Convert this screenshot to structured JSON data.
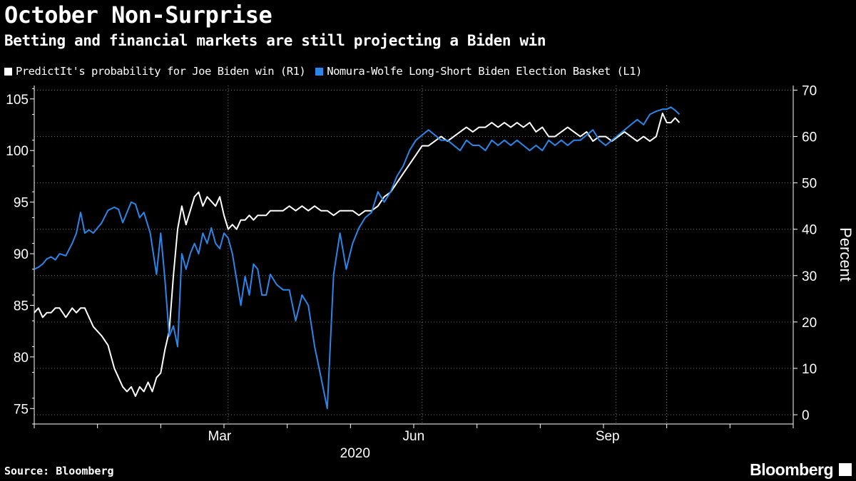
{
  "header": {
    "title": "October Non-Surprise",
    "subtitle": "Betting and financial markets are still projecting a Biden win"
  },
  "legend": [
    {
      "label": "PredictIt's probability for Joe Biden win (R1)",
      "color": "#ffffff"
    },
    {
      "label": "Nomura-Wolfe Long-Short Biden Election Basket  (L1)",
      "color": "#2b86e8"
    }
  ],
  "footer": {
    "source": "Source: Bloomberg",
    "brand": "Bloomberg"
  },
  "chart_data": {
    "type": "line",
    "title": "October Non-Surprise",
    "subtitle": "Betting and financial markets are still projecting a Biden win",
    "xlabel": "2020",
    "ylabel_right": "Percent",
    "x_ticks": [
      "Mar",
      "Jun",
      "Sep"
    ],
    "left_axis": {
      "ticks": [
        75,
        80,
        85,
        90,
        95,
        100,
        105
      ],
      "range": [
        73.5,
        106.3
      ]
    },
    "right_axis": {
      "ticks": [
        0,
        10,
        20,
        30,
        40,
        50,
        60,
        70
      ],
      "range": [
        -2,
        71
      ]
    },
    "x_range": [
      0,
      360
    ],
    "x_tick_positions": [
      92,
      184,
      276
    ],
    "grid": true,
    "series": [
      {
        "name": "PredictIt's probability for Joe Biden win (R1)",
        "axis": "right",
        "color": "#ffffff",
        "x": [
          0,
          2,
          4,
          6,
          8,
          10,
          12,
          15,
          18,
          20,
          22,
          24,
          26,
          28,
          30,
          32,
          35,
          38,
          40,
          42,
          44,
          46,
          48,
          50,
          52,
          54,
          56,
          58,
          60,
          62,
          64,
          66,
          68,
          70,
          72,
          74,
          76,
          78,
          80,
          82,
          84,
          86,
          88,
          90,
          92,
          94,
          96,
          98,
          100,
          102,
          104,
          106,
          108,
          110,
          112,
          115,
          118,
          121,
          124,
          127,
          130,
          133,
          136,
          139,
          142,
          145,
          148,
          151,
          154,
          157,
          160,
          163,
          166,
          169,
          172,
          175,
          178,
          181,
          184,
          187,
          190,
          193,
          196,
          199,
          202,
          205,
          208,
          211,
          214,
          217,
          220,
          223,
          226,
          229,
          232,
          235,
          238,
          241,
          244,
          247,
          250,
          253,
          256,
          259,
          262,
          265,
          268,
          271,
          274,
          277,
          280,
          283,
          286,
          289,
          292,
          295,
          298,
          300,
          302,
          304,
          306
        ],
        "values": [
          22,
          23,
          21,
          22,
          22,
          23,
          23,
          21,
          23,
          22,
          23,
          23,
          21,
          19,
          18,
          17,
          15,
          10,
          8,
          6,
          5,
          6,
          4,
          6,
          5,
          7,
          5,
          8,
          9,
          14,
          18,
          30,
          40,
          45,
          41,
          44,
          47,
          48,
          45,
          47,
          46,
          45,
          47,
          43,
          40,
          41,
          40,
          42,
          42,
          43,
          42,
          43,
          43,
          43,
          44,
          44,
          44,
          45,
          44,
          45,
          44,
          45,
          44,
          44,
          43,
          44,
          44,
          44,
          43,
          44,
          44,
          45,
          47,
          48,
          50,
          52,
          54,
          56,
          58,
          58,
          59,
          60,
          59,
          60,
          61,
          62,
          61,
          62,
          62,
          63,
          62,
          63,
          62,
          63,
          62,
          63,
          61,
          62,
          60,
          60,
          61,
          62,
          61,
          60,
          61,
          59,
          60,
          60,
          59,
          60,
          61,
          60,
          59,
          60,
          59,
          60,
          65,
          63,
          63,
          64,
          63
        ]
      },
      {
        "name": "Nomura-Wolfe Long-Short Biden Election Basket  (L1)",
        "axis": "left",
        "color": "#2b86e8",
        "x": [
          0,
          2,
          4,
          6,
          8,
          10,
          12,
          15,
          18,
          20,
          22,
          24,
          26,
          28,
          30,
          32,
          35,
          38,
          40,
          42,
          44,
          46,
          48,
          50,
          52,
          55,
          58,
          60,
          62,
          64,
          66,
          68,
          70,
          72,
          74,
          76,
          78,
          80,
          82,
          84,
          86,
          88,
          90,
          92,
          94,
          96,
          98,
          100,
          102,
          104,
          106,
          108,
          110,
          112,
          115,
          118,
          121,
          124,
          127,
          130,
          133,
          136,
          139,
          142,
          145,
          148,
          151,
          154,
          157,
          160,
          163,
          166,
          169,
          172,
          175,
          178,
          181,
          184,
          187,
          190,
          193,
          196,
          199,
          202,
          205,
          208,
          211,
          214,
          217,
          220,
          223,
          226,
          229,
          232,
          235,
          238,
          241,
          244,
          247,
          250,
          253,
          256,
          259,
          262,
          265,
          268,
          271,
          274,
          277,
          280,
          283,
          286,
          289,
          292,
          295,
          298,
          300,
          302,
          304,
          306
        ],
        "values": [
          88.5,
          88.7,
          89,
          89.5,
          89.7,
          89.4,
          90,
          89.8,
          91,
          92,
          94,
          92,
          92.3,
          92,
          92.5,
          93,
          94.2,
          94.5,
          94.3,
          93,
          94,
          95,
          94.8,
          93.5,
          94,
          92,
          88,
          92,
          87.5,
          82,
          83,
          81,
          90,
          88.5,
          90,
          91,
          90,
          92,
          91,
          92.5,
          91,
          90.5,
          92,
          91.5,
          90,
          87.5,
          85,
          87.8,
          86,
          89,
          88.5,
          86,
          86,
          88,
          87,
          86.5,
          86.5,
          83.5,
          86,
          85,
          81,
          78,
          75,
          88,
          92,
          88.5,
          91,
          92.5,
          93.5,
          94,
          96,
          95,
          96,
          97.5,
          98.5,
          100,
          101,
          101.5,
          102,
          101.5,
          101,
          101,
          100.5,
          100,
          101,
          100.5,
          100.5,
          100,
          101,
          100.5,
          101,
          100.5,
          101,
          100.5,
          100,
          100.5,
          100,
          101,
          100.5,
          101,
          100.5,
          101,
          101,
          101.5,
          102,
          101,
          100.5,
          101,
          101.5,
          102,
          102.5,
          103,
          102.5,
          103.5,
          103.8,
          104,
          104,
          104.2,
          103.9,
          103.5
        ]
      }
    ]
  },
  "axis_labels": {
    "x": "2020",
    "right": "Percent"
  }
}
